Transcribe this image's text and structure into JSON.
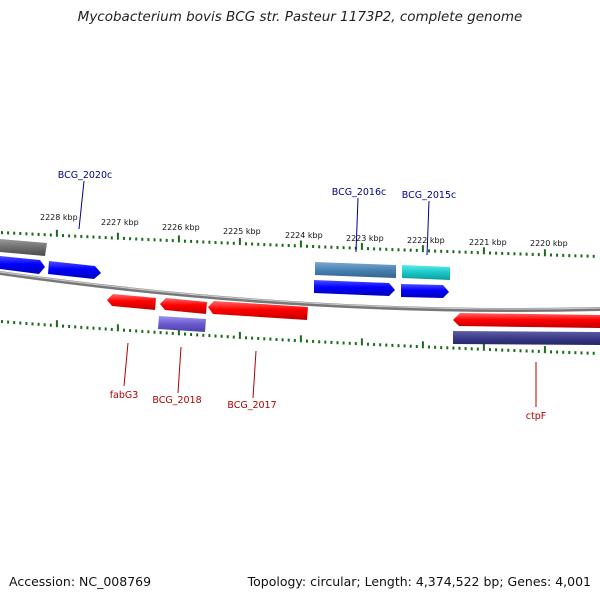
{
  "title": "Mycobacterium bovis BCG str. Pasteur 1173P2, complete genome",
  "footer": {
    "accession": "Accession: NC_008769",
    "summary": "Topology: circular; Length: 4,374,522 bp; Genes: 4,001"
  },
  "colors": {
    "forward_label": "#00008b",
    "reverse_label": "#b00000",
    "tick": "#1a6b1a",
    "backbone": "#808080"
  },
  "scale_labels": [
    "2228 kbp",
    "2227 kbp",
    "2226 kbp",
    "2225 kbp",
    "2224 kbp",
    "2223 kbp",
    "2222 kbp",
    "2221 kbp",
    "2220 kbp"
  ],
  "gene_labels": [
    {
      "name": "BCG_2020c",
      "strand": "forward"
    },
    {
      "name": "BCG_2016c",
      "strand": "forward"
    },
    {
      "name": "BCG_2015c",
      "strand": "forward"
    },
    {
      "name": "fabG3",
      "strand": "reverse"
    },
    {
      "name": "BCG_2018",
      "strand": "reverse"
    },
    {
      "name": "BCG_2017",
      "strand": "reverse"
    },
    {
      "name": "ctpF",
      "strand": "reverse"
    }
  ]
}
